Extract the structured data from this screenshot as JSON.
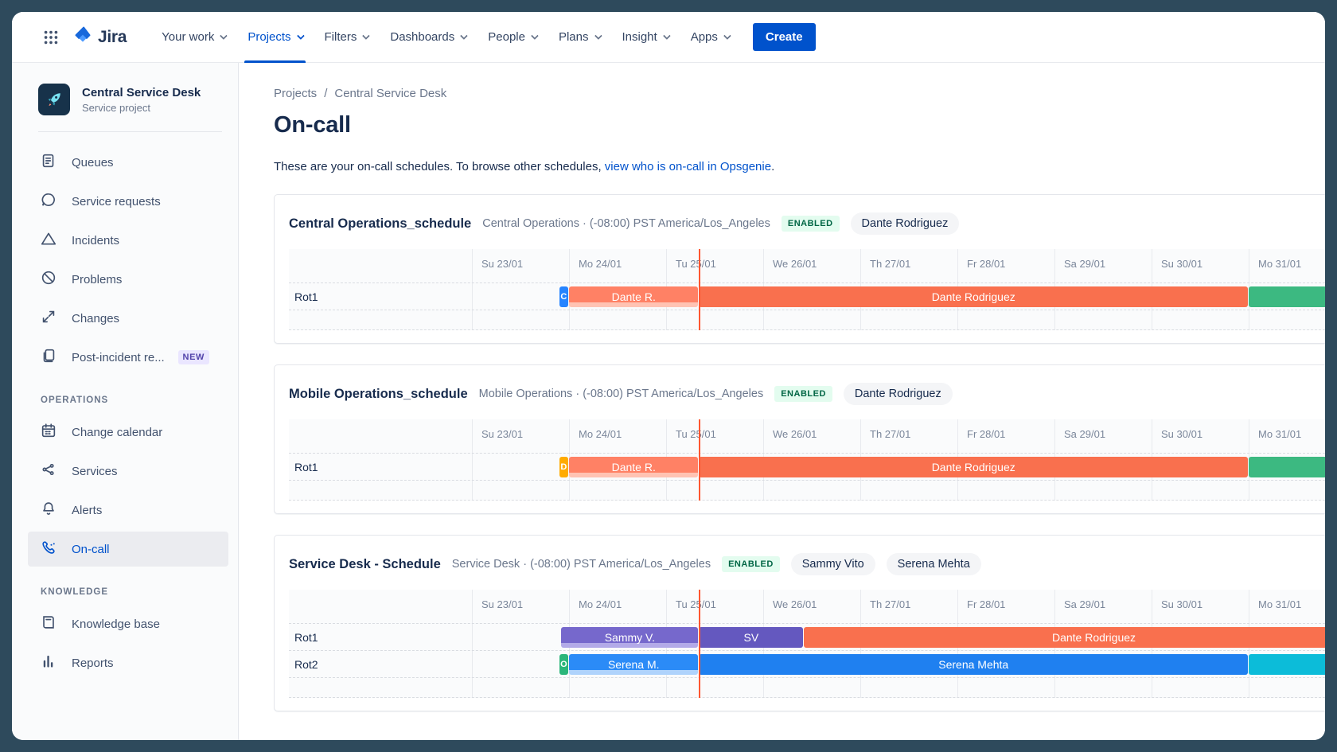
{
  "nav": {
    "logo_text": "Jira",
    "items": [
      "Your work",
      "Projects",
      "Filters",
      "Dashboards",
      "People",
      "Plans",
      "Insight",
      "Apps"
    ],
    "active": "Projects",
    "create_label": "Create"
  },
  "sidebar": {
    "project": {
      "name": "Central Service Desk",
      "type": "Service project"
    },
    "items": [
      {
        "icon": "queues",
        "label": "Queues"
      },
      {
        "icon": "chat",
        "label": "Service requests"
      },
      {
        "icon": "triangle",
        "label": "Incidents"
      },
      {
        "icon": "block",
        "label": "Problems"
      },
      {
        "icon": "changes",
        "label": "Changes"
      },
      {
        "icon": "pages",
        "label": "Post-incident re...",
        "badge": "NEW"
      }
    ],
    "sections": [
      {
        "title": "OPERATIONS",
        "items": [
          {
            "icon": "calendar",
            "label": "Change calendar"
          },
          {
            "icon": "services",
            "label": "Services"
          },
          {
            "icon": "bell",
            "label": "Alerts"
          },
          {
            "icon": "phone",
            "label": "On-call",
            "active": true
          }
        ]
      },
      {
        "title": "KNOWLEDGE",
        "items": [
          {
            "icon": "book",
            "label": "Knowledge base"
          },
          {
            "icon": "report",
            "label": "Reports"
          }
        ]
      }
    ]
  },
  "main": {
    "breadcrumb": [
      "Projects",
      "Central Service Desk"
    ],
    "title": "On-call",
    "intro_text": "These are your on-call schedules. To browse other schedules, ",
    "intro_link": "view who is on-call in Opsgenie",
    "intro_suffix": "."
  },
  "timeline": {
    "days": [
      "Su 23/01",
      "Mo 24/01",
      "Tu 25/01",
      "We 26/01",
      "Th 27/01",
      "Fr 28/01",
      "Sa 29/01",
      "Su 30/01",
      "Mo 31/01"
    ],
    "now_day": 2.34,
    "end_day": 9.4
  },
  "colors": {
    "accent": "#0052CC",
    "now_line": "#FF5630",
    "enabled_badge_bg": "#E3FCEF",
    "enabled_badge_text": "#006644",
    "bars": {
      "chip_blue": {
        "bg": "#2684FF"
      },
      "chip_yellow": {
        "bg": "#FFAB00"
      },
      "chip_green": {
        "bg": "#2BB67A"
      },
      "orange_current": {
        "bg": "#FF8165",
        "strip": "#FFC3B3"
      },
      "orange": {
        "bg": "#F9704E"
      },
      "green": {
        "bg": "#3CB981"
      },
      "purple_current": {
        "bg": "#7668CC",
        "strip": "#B3AAE8"
      },
      "purple": {
        "bg": "#6458BF"
      },
      "blue_current": {
        "bg": "#2B8BF7",
        "strip": "#AFD3FC"
      },
      "blue": {
        "bg": "#1F80F0"
      },
      "teal": {
        "bg": "#0CBCD9"
      }
    }
  },
  "schedules": [
    {
      "name": "Central Operations_schedule",
      "meta": "Central Operations · (-08:00) PST America/Los_Angeles",
      "status": "ENABLED",
      "members": [
        "Dante Rodriguez"
      ],
      "rows": [
        {
          "label": "Rot1",
          "bars": [
            {
              "text": "C",
              "start": 0.9,
              "end": 1.0,
              "style": "chip_blue"
            },
            {
              "text": "Dante R.",
              "start": 1.0,
              "end": 2.34,
              "style": "orange_current"
            },
            {
              "text": "Dante Rodriguez",
              "start": 2.34,
              "end": 8.0,
              "style": "orange"
            },
            {
              "text": "",
              "start": 8.0,
              "end": 9.4,
              "style": "green"
            }
          ]
        }
      ]
    },
    {
      "name": "Mobile Operations_schedule",
      "meta": "Mobile Operations · (-08:00) PST America/Los_Angeles",
      "status": "ENABLED",
      "members": [
        "Dante Rodriguez"
      ],
      "rows": [
        {
          "label": "Rot1",
          "bars": [
            {
              "text": "D",
              "start": 0.9,
              "end": 1.0,
              "style": "chip_yellow"
            },
            {
              "text": "Dante R.",
              "start": 1.0,
              "end": 2.34,
              "style": "orange_current"
            },
            {
              "text": "Dante Rodriguez",
              "start": 2.34,
              "end": 8.0,
              "style": "orange"
            },
            {
              "text": "",
              "start": 8.0,
              "end": 9.4,
              "style": "green"
            }
          ]
        }
      ]
    },
    {
      "name": "Service Desk - Schedule",
      "meta": "Service Desk · (-08:00) PST America/Los_Angeles",
      "status": "ENABLED",
      "members": [
        "Sammy Vito",
        "Serena Mehta"
      ],
      "rows": [
        {
          "label": "Rot1",
          "bars": [
            {
              "text": "Sammy V.",
              "start": 0.92,
              "end": 2.34,
              "style": "purple_current"
            },
            {
              "text": "SV",
              "start": 2.34,
              "end": 3.42,
              "style": "purple"
            },
            {
              "text": "Dante Rodriguez",
              "start": 3.42,
              "end": 9.4,
              "style": "orange"
            }
          ]
        },
        {
          "label": "Rot2",
          "bars": [
            {
              "text": "O",
              "start": 0.9,
              "end": 1.0,
              "style": "chip_green"
            },
            {
              "text": "Serena M.",
              "start": 1.0,
              "end": 2.34,
              "style": "blue_current"
            },
            {
              "text": "Serena Mehta",
              "start": 2.34,
              "end": 8.0,
              "style": "blue"
            },
            {
              "text": "",
              "start": 8.0,
              "end": 9.4,
              "style": "teal"
            }
          ]
        }
      ]
    }
  ]
}
